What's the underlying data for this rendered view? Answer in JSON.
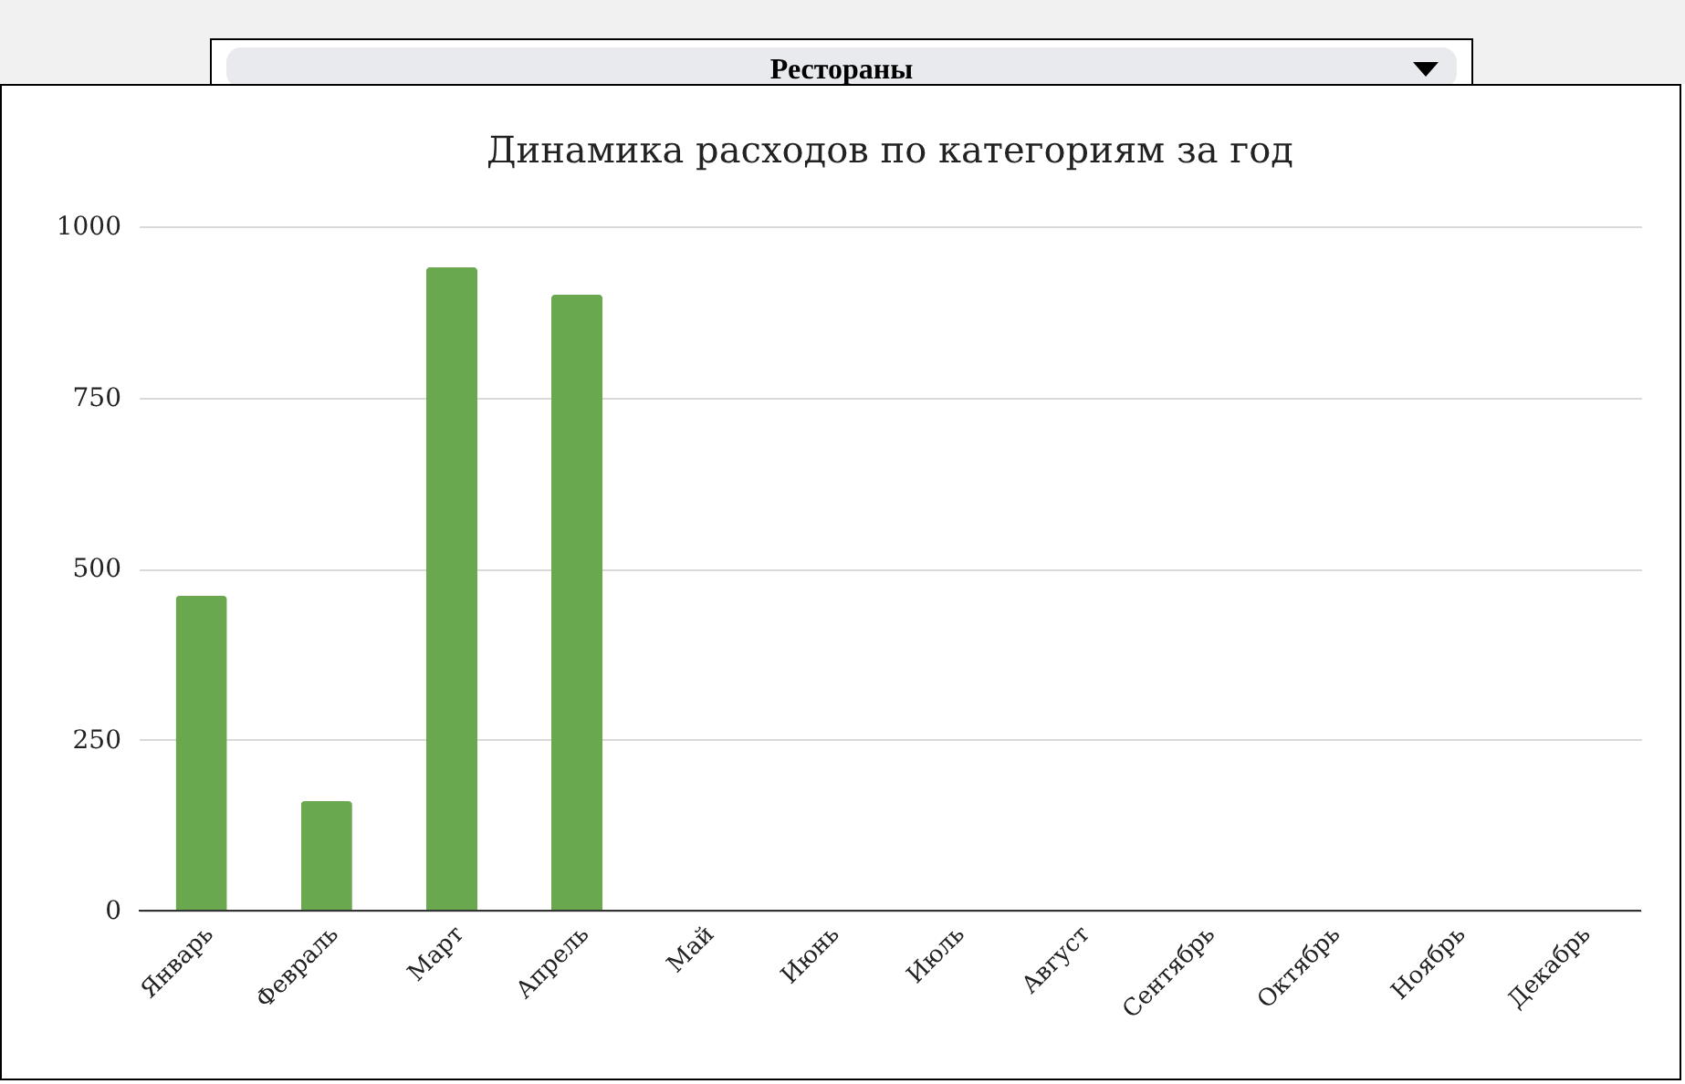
{
  "chart_data": {
    "type": "bar",
    "title": "Динамика расходов по категориям за год",
    "subtitle": "Рестораны",
    "categories": [
      "Январь",
      "Февраль",
      "Март",
      "Апрель",
      "Май",
      "Июнь",
      "Июль",
      "Август",
      "Сентябрь",
      "Октябрь",
      "Ноябрь",
      "Декабрь"
    ],
    "values": [
      460,
      160,
      940,
      900,
      0,
      0,
      0,
      0,
      0,
      0,
      0,
      0
    ],
    "color": "#6aa84f",
    "ylim": [
      0,
      1000
    ],
    "yticks": [
      0,
      250,
      500,
      750,
      1000
    ],
    "grid": "y"
  }
}
